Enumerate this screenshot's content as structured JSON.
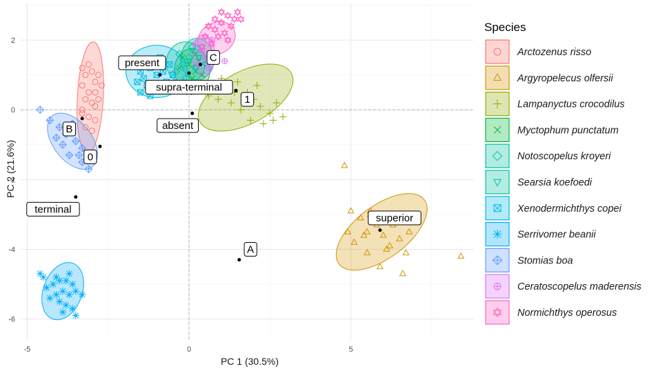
{
  "chart_data": {
    "type": "scatter",
    "xlabel": "PC 1 (30.5%)",
    "ylabel": "PC 2 (21.6%)",
    "xlim": [
      -5.2,
      8.8
    ],
    "ylim": [
      -6.6,
      3.05
    ],
    "x_ticks": [
      -5,
      0,
      5
    ],
    "y_ticks": [
      -6,
      -4,
      -2,
      0,
      2
    ],
    "zero_lines": true,
    "grid": true,
    "legend": {
      "title": "Species",
      "placement": "right"
    },
    "colors": [
      "#F8766D",
      "#D39200",
      "#93AA00",
      "#00BA38",
      "#00C19F",
      "#00B9E3",
      "#00ADFA",
      "#619CFF",
      "#DB72FB",
      "#FF61C3"
    ],
    "series": [
      {
        "name": "Arctozenus risso",
        "marker": "circle",
        "color": "#F8766D",
        "ellipse": {
          "cx": -3.05,
          "cy": 0.35,
          "rx": 0.4,
          "ry": 1.6,
          "angle": 3
        },
        "points": [
          [
            -3.3,
            1.2
          ],
          [
            -3.2,
            1.0
          ],
          [
            -3.0,
            1.1
          ],
          [
            -2.8,
            1.0
          ],
          [
            -2.9,
            0.8
          ],
          [
            -3.3,
            0.7
          ],
          [
            -3.1,
            0.5
          ],
          [
            -2.9,
            0.5
          ],
          [
            -3.2,
            0.3
          ],
          [
            -3.0,
            0.2
          ],
          [
            -2.9,
            0.1
          ],
          [
            -3.3,
            -0.1
          ],
          [
            -3.1,
            -0.2
          ],
          [
            -2.9,
            -0.3
          ],
          [
            -3.2,
            -0.5
          ],
          [
            -3.1,
            1.3
          ],
          [
            -2.7,
            0.7
          ],
          [
            -3.0,
            -0.6
          ],
          [
            -3.3,
            0.0
          ],
          [
            -2.8,
            0.3
          ]
        ]
      },
      {
        "name": "Argyropelecus olfersii",
        "marker": "triangle",
        "color": "#D39200",
        "ellipse": {
          "cx": 5.95,
          "cy": -3.5,
          "rx": 1.65,
          "ry": 0.75,
          "angle": -37
        },
        "points": [
          [
            4.8,
            -1.6
          ],
          [
            8.4,
            -4.2
          ],
          [
            5.0,
            -2.9
          ],
          [
            5.3,
            -3.1
          ],
          [
            5.6,
            -2.9
          ],
          [
            5.8,
            -3.3
          ],
          [
            5.5,
            -3.5
          ],
          [
            6.0,
            -3.6
          ],
          [
            6.2,
            -3.9
          ],
          [
            5.1,
            -3.8
          ],
          [
            5.5,
            -4.1
          ],
          [
            6.3,
            -3.3
          ],
          [
            6.5,
            -3.7
          ],
          [
            6.7,
            -4.1
          ],
          [
            5.9,
            -4.5
          ],
          [
            6.6,
            -4.7
          ],
          [
            5.6,
            -3.0
          ],
          [
            6.0,
            -3.2
          ],
          [
            4.9,
            -3.5
          ],
          [
            6.8,
            -3.5
          ],
          [
            5.4,
            -3.6
          ],
          [
            6.1,
            -4.0
          ]
        ]
      },
      {
        "name": "Lampanyctus crocodilus",
        "marker": "plus",
        "color": "#93AA00",
        "ellipse": {
          "cx": 1.75,
          "cy": 0.35,
          "rx": 1.6,
          "ry": 0.75,
          "angle": -28
        },
        "points": [
          [
            1.0,
            0.9
          ],
          [
            1.2,
            0.7
          ],
          [
            1.5,
            0.8
          ],
          [
            1.8,
            0.5
          ],
          [
            2.0,
            0.3
          ],
          [
            2.2,
            0.1
          ],
          [
            2.5,
            -0.1
          ],
          [
            1.3,
            0.2
          ],
          [
            1.6,
            0.0
          ],
          [
            1.9,
            -0.3
          ],
          [
            2.3,
            -0.4
          ],
          [
            2.7,
            0.2
          ],
          [
            2.9,
            -0.2
          ],
          [
            2.1,
            0.7
          ],
          [
            2.6,
            -0.3
          ],
          [
            0.6,
            0.4
          ],
          [
            0.9,
            0.3
          ],
          [
            1.4,
            0.5
          ]
        ]
      },
      {
        "name": "Myctophum punctatum",
        "marker": "cross",
        "color": "#00BA38",
        "ellipse": {
          "cx": 0.1,
          "cy": 1.15,
          "rx": 0.55,
          "ry": 0.6,
          "angle": 0
        },
        "points": [
          [
            -0.2,
            1.5
          ],
          [
            0.0,
            1.3
          ],
          [
            0.2,
            1.1
          ],
          [
            0.1,
            0.9
          ],
          [
            -0.1,
            0.8
          ],
          [
            0.3,
            1.4
          ],
          [
            0.4,
            1.0
          ],
          [
            0.0,
            0.5
          ],
          [
            -0.3,
            1.2
          ],
          [
            0.2,
            1.6
          ]
        ]
      },
      {
        "name": "Notoscopelus kroyeri",
        "marker": "diamond",
        "color": "#00C19F",
        "ellipse": {
          "cx": -0.1,
          "cy": 1.35,
          "rx": 0.6,
          "ry": 0.6,
          "angle": 0
        },
        "points": [
          [
            -0.3,
            1.6
          ],
          [
            0.0,
            1.5
          ],
          [
            -0.2,
            1.3
          ],
          [
            0.2,
            1.2
          ],
          [
            -0.4,
            1.1
          ],
          [
            0.1,
            1.8
          ],
          [
            -0.1,
            0.9
          ]
        ]
      },
      {
        "name": "Searsia koefoedi",
        "marker": "down-triangle",
        "color": "#00C19F",
        "ellipse": {
          "cx": 0.25,
          "cy": 1.45,
          "rx": 0.5,
          "ry": 0.6,
          "angle": 0
        },
        "points": [
          [
            0.1,
            1.7
          ],
          [
            0.3,
            1.5
          ],
          [
            0.5,
            1.3
          ],
          [
            0.2,
            1.2
          ],
          [
            0.4,
            1.8
          ],
          [
            0.0,
            1.4
          ]
        ]
      },
      {
        "name": "Xenodermichthys copei",
        "marker": "boxx",
        "color": "#00B9E3",
        "ellipse": {
          "cx": -1.0,
          "cy": 1.1,
          "rx": 0.95,
          "ry": 0.75,
          "angle": 0
        },
        "points": [
          [
            -1.5,
            1.1
          ],
          [
            -1.4,
            0.9
          ],
          [
            -1.2,
            1.2
          ],
          [
            -1.0,
            1.0
          ],
          [
            -0.8,
            1.1
          ],
          [
            -1.3,
            0.7
          ],
          [
            -1.5,
            0.5
          ],
          [
            -0.7,
            0.8
          ],
          [
            -1.1,
            1.4
          ],
          [
            -0.6,
            1.3
          ],
          [
            -1.6,
            0.8
          ],
          [
            -0.9,
            1.5
          ],
          [
            -1.2,
            0.4
          ],
          [
            -0.5,
            1.0
          ]
        ]
      },
      {
        "name": "Serrivomer beanii",
        "marker": "asterisk",
        "color": "#00ADFA",
        "ellipse": {
          "cx": -3.9,
          "cy": -5.2,
          "rx": 0.6,
          "ry": 0.85,
          "angle": 20
        },
        "points": [
          [
            -4.5,
            -4.8
          ],
          [
            -4.2,
            -5.0
          ],
          [
            -4.0,
            -4.9
          ],
          [
            -3.8,
            -4.9
          ],
          [
            -3.6,
            -5.0
          ],
          [
            -3.9,
            -5.2
          ],
          [
            -4.1,
            -5.3
          ],
          [
            -3.7,
            -5.3
          ],
          [
            -4.0,
            -5.5
          ],
          [
            -3.8,
            -5.6
          ],
          [
            -3.6,
            -5.7
          ],
          [
            -3.9,
            -5.8
          ],
          [
            -4.3,
            -5.4
          ],
          [
            -3.5,
            -5.2
          ],
          [
            -4.4,
            -5.1
          ],
          [
            -4.6,
            -4.7
          ],
          [
            -3.3,
            -5.3
          ],
          [
            -3.5,
            -5.9
          ],
          [
            -4.1,
            -4.8
          ],
          [
            -3.7,
            -4.7
          ]
        ]
      },
      {
        "name": "Stomias boa",
        "marker": "circle-plus-diag",
        "color": "#619CFF",
        "ellipse": {
          "cx": -3.6,
          "cy": -0.9,
          "rx": 1.0,
          "ry": 0.55,
          "angle": 52
        },
        "points": [
          [
            -4.6,
            0.0
          ],
          [
            -4.3,
            -0.3
          ],
          [
            -4.0,
            -0.5
          ],
          [
            -3.8,
            -0.7
          ],
          [
            -3.5,
            -0.9
          ],
          [
            -3.3,
            -1.1
          ],
          [
            -3.7,
            -1.3
          ],
          [
            -3.3,
            -1.5
          ],
          [
            -3.1,
            -1.7
          ],
          [
            -3.9,
            -1.0
          ],
          [
            -4.1,
            -0.8
          ],
          [
            -3.6,
            -0.4
          ],
          [
            -3.4,
            -1.3
          ]
        ]
      },
      {
        "name": "Ceratoscopelus maderensis",
        "marker": "circle-plus",
        "color": "#DB72FB",
        "ellipse": {
          "cx": 0.45,
          "cy": 1.55,
          "rx": 0.35,
          "ry": 0.6,
          "angle": 0
        },
        "points": [
          [
            0.2,
            1.9
          ],
          [
            0.4,
            1.7
          ],
          [
            0.5,
            1.5
          ],
          [
            0.3,
            1.3
          ],
          [
            0.6,
            1.2
          ],
          [
            0.7,
            2.0
          ],
          [
            1.1,
            1.4
          ]
        ]
      },
      {
        "name": "Normichthys operosus",
        "marker": "star-of-david",
        "color": "#FF61C3",
        "ellipse": {
          "cx": 0.85,
          "cy": 2.05,
          "rx": 0.6,
          "ry": 0.45,
          "angle": -28
        },
        "points": [
          [
            0.6,
            2.4
          ],
          [
            0.8,
            2.6
          ],
          [
            1.0,
            2.5
          ],
          [
            1.2,
            2.7
          ],
          [
            1.3,
            2.4
          ],
          [
            1.1,
            2.2
          ],
          [
            0.9,
            2.1
          ],
          [
            0.7,
            1.9
          ],
          [
            0.5,
            2.1
          ],
          [
            1.4,
            2.6
          ],
          [
            1.5,
            2.8
          ],
          [
            0.8,
            2.3
          ],
          [
            1.2,
            2.0
          ],
          [
            0.4,
            1.8
          ],
          [
            1.6,
            2.6
          ],
          [
            1.0,
            2.8
          ]
        ]
      }
    ],
    "centroids": [
      {
        "label": "present",
        "x": -0.9,
        "y": 1.0,
        "lx": -1.45,
        "ly": 1.35
      },
      {
        "label": "supra-terminal",
        "x": 0.0,
        "y": 1.05,
        "lx": 0.0,
        "ly": 0.65
      },
      {
        "label": "C",
        "x": 0.35,
        "y": 1.3,
        "lx": 0.75,
        "ly": 1.5
      },
      {
        "label": "1",
        "x": 1.45,
        "y": 0.55,
        "lx": 1.8,
        "ly": 0.3
      },
      {
        "label": "absent",
        "x": 0.1,
        "y": -0.1,
        "lx": -0.35,
        "ly": -0.45
      },
      {
        "label": "B",
        "x": -3.3,
        "y": -0.25,
        "lx": -3.7,
        "ly": -0.55
      },
      {
        "label": "0",
        "x": -2.75,
        "y": -1.05,
        "lx": -3.05,
        "ly": -1.35
      },
      {
        "label": "terminal",
        "x": -3.5,
        "y": -2.5,
        "lx": -4.2,
        "ly": -2.85
      },
      {
        "label": "superior",
        "x": 5.9,
        "y": -3.45,
        "lx": 6.35,
        "ly": -3.1
      },
      {
        "label": "A",
        "x": 1.55,
        "y": -4.3,
        "lx": 1.9,
        "ly": -4.0
      }
    ]
  }
}
